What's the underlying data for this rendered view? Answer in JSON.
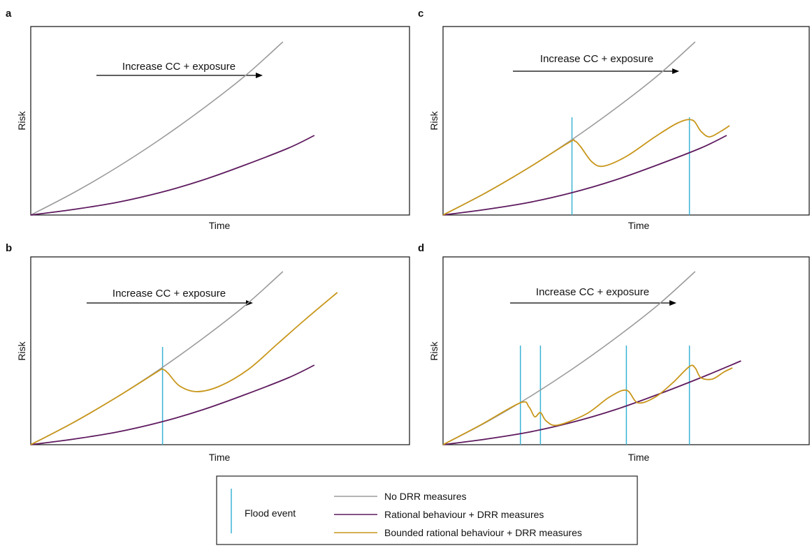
{
  "colors": {
    "no_drr": "#9b9b9b",
    "rational": "#5e1a5e",
    "bounded": "#c8961a",
    "flood": "#3bb3d6",
    "frame": "#222222"
  },
  "legend": {
    "flood_label": "Flood event",
    "entries": [
      {
        "key": "no_drr",
        "label": "No DRR measures"
      },
      {
        "key": "rational",
        "label": "Rational behaviour + DRR measures"
      },
      {
        "key": "bounded",
        "label": "Bounded rational behaviour + DRR measures"
      }
    ]
  },
  "chart_data": [
    {
      "panel": "a",
      "type": "line",
      "xlabel": "Time",
      "ylabel": "Risk",
      "annotation": "Increase CC + exposure",
      "flood_events": [],
      "series": [
        {
          "key": "no_drr",
          "name": "No DRR measures",
          "points": [
            [
              0,
              0
            ],
            [
              0.15,
              0.16
            ],
            [
              0.3,
              0.34
            ],
            [
              0.45,
              0.54
            ],
            [
              0.6,
              0.76
            ],
            [
              0.75,
              1.0
            ],
            [
              0.88,
              1.24
            ]
          ]
        },
        {
          "key": "rational",
          "name": "Rational behaviour + DRR measures",
          "points": [
            [
              0,
              0
            ],
            [
              0.15,
              0.04
            ],
            [
              0.3,
              0.09
            ],
            [
              0.45,
              0.16
            ],
            [
              0.6,
              0.25
            ],
            [
              0.75,
              0.36
            ],
            [
              0.9,
              0.48
            ],
            [
              0.99,
              0.57
            ]
          ]
        }
      ]
    },
    {
      "panel": "b",
      "type": "line",
      "xlabel": "Time",
      "ylabel": "Risk",
      "annotation": "Increase CC + exposure",
      "flood_events": [
        0.46
      ],
      "series": [
        {
          "key": "no_drr",
          "name": "No DRR measures",
          "points": [
            [
              0,
              0
            ],
            [
              0.15,
              0.16
            ],
            [
              0.3,
              0.34
            ],
            [
              0.45,
              0.54
            ],
            [
              0.6,
              0.76
            ],
            [
              0.75,
              1.0
            ],
            [
              0.88,
              1.24
            ]
          ]
        },
        {
          "key": "rational",
          "name": "Rational behaviour + DRR measures",
          "points": [
            [
              0,
              0
            ],
            [
              0.15,
              0.04
            ],
            [
              0.3,
              0.09
            ],
            [
              0.45,
              0.16
            ],
            [
              0.6,
              0.25
            ],
            [
              0.75,
              0.36
            ],
            [
              0.9,
              0.48
            ],
            [
              0.99,
              0.57
            ]
          ]
        },
        {
          "key": "bounded",
          "name": "Bounded rational behaviour + DRR measures",
          "points": [
            [
              0,
              0
            ],
            [
              0.15,
              0.16
            ],
            [
              0.3,
              0.34
            ],
            [
              0.44,
              0.52
            ],
            [
              0.46,
              0.54
            ],
            [
              0.48,
              0.51
            ],
            [
              0.52,
              0.42
            ],
            [
              0.58,
              0.38
            ],
            [
              0.66,
              0.42
            ],
            [
              0.76,
              0.54
            ],
            [
              0.86,
              0.72
            ],
            [
              0.96,
              0.9
            ],
            [
              1.07,
              1.09
            ]
          ]
        }
      ]
    },
    {
      "panel": "c",
      "type": "line",
      "xlabel": "Time",
      "ylabel": "Risk",
      "annotation": "Increase CC + exposure",
      "flood_events": [
        0.45,
        0.86
      ],
      "series": [
        {
          "key": "no_drr",
          "name": "No DRR measures",
          "points": [
            [
              0,
              0
            ],
            [
              0.15,
              0.16
            ],
            [
              0.3,
              0.34
            ],
            [
              0.45,
              0.54
            ],
            [
              0.6,
              0.76
            ],
            [
              0.75,
              1.0
            ],
            [
              0.88,
              1.24
            ]
          ]
        },
        {
          "key": "rational",
          "name": "Rational behaviour + DRR measures",
          "points": [
            [
              0,
              0
            ],
            [
              0.15,
              0.04
            ],
            [
              0.3,
              0.09
            ],
            [
              0.45,
              0.16
            ],
            [
              0.6,
              0.25
            ],
            [
              0.75,
              0.36
            ],
            [
              0.9,
              0.48
            ],
            [
              0.99,
              0.57
            ]
          ]
        },
        {
          "key": "bounded",
          "name": "Bounded rational behaviour + DRR measures",
          "points": [
            [
              0,
              0
            ],
            [
              0.15,
              0.16
            ],
            [
              0.3,
              0.34
            ],
            [
              0.44,
              0.52
            ],
            [
              0.46,
              0.53
            ],
            [
              0.48,
              0.49
            ],
            [
              0.52,
              0.38
            ],
            [
              0.56,
              0.35
            ],
            [
              0.64,
              0.42
            ],
            [
              0.74,
              0.56
            ],
            [
              0.82,
              0.66
            ],
            [
              0.87,
              0.68
            ],
            [
              0.9,
              0.6
            ],
            [
              0.93,
              0.56
            ],
            [
              0.97,
              0.6
            ],
            [
              1.0,
              0.64
            ]
          ]
        }
      ]
    },
    {
      "panel": "d",
      "type": "line",
      "xlabel": "Time",
      "ylabel": "Risk",
      "annotation": "Increase CC + exposure",
      "flood_events": [
        0.27,
        0.34,
        0.64,
        0.86
      ],
      "series": [
        {
          "key": "no_drr",
          "name": "No DRR measures",
          "points": [
            [
              0,
              0
            ],
            [
              0.15,
              0.16
            ],
            [
              0.3,
              0.34
            ],
            [
              0.45,
              0.54
            ],
            [
              0.6,
              0.76
            ],
            [
              0.75,
              1.0
            ],
            [
              0.88,
              1.24
            ]
          ]
        },
        {
          "key": "rational",
          "name": "Rational behaviour + DRR measures",
          "points": [
            [
              0,
              0
            ],
            [
              0.15,
              0.04
            ],
            [
              0.3,
              0.09
            ],
            [
              0.45,
              0.16
            ],
            [
              0.6,
              0.25
            ],
            [
              0.75,
              0.36
            ],
            [
              0.9,
              0.48
            ],
            [
              1.04,
              0.6
            ]
          ]
        },
        {
          "key": "bounded",
          "name": "Bounded rational behaviour + DRR measures",
          "points": [
            [
              0,
              0
            ],
            [
              0.13,
              0.14
            ],
            [
              0.27,
              0.3
            ],
            [
              0.3,
              0.27
            ],
            [
              0.32,
              0.2
            ],
            [
              0.34,
              0.23
            ],
            [
              0.36,
              0.17
            ],
            [
              0.4,
              0.14
            ],
            [
              0.5,
              0.22
            ],
            [
              0.58,
              0.34
            ],
            [
              0.64,
              0.39
            ],
            [
              0.68,
              0.3
            ],
            [
              0.74,
              0.34
            ],
            [
              0.8,
              0.44
            ],
            [
              0.86,
              0.56
            ],
            [
              0.88,
              0.55
            ],
            [
              0.9,
              0.48
            ],
            [
              0.94,
              0.47
            ],
            [
              0.98,
              0.52
            ],
            [
              1.01,
              0.55
            ]
          ]
        }
      ]
    }
  ]
}
